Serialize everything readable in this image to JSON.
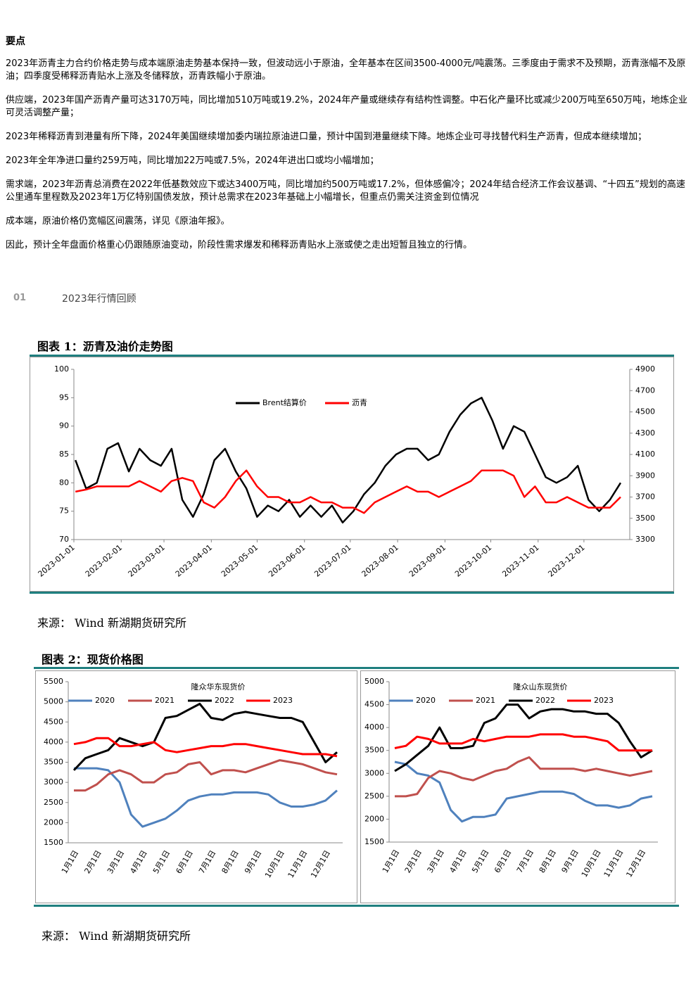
{
  "heading": "要点",
  "paragraphs": [
    "2023年沥青主力合约价格走势与成本端原油走势基本保持一致，但波动远小于原油，全年基本在区间3500-4000元/吨震荡。三季度由于需求不及预期，沥青涨幅不及原油；四季度受稀释沥青贴水上涨及冬储释放，沥青跌幅小于原油。",
    "供应端，2023年国产沥青产量可达3170万吨，同比增加510万吨或19.2%，2024年产量或继续存有结构性调整。中石化产量环比或减少200万吨至650万吨，地炼企业可灵活调整产量；",
    "2023年稀释沥青到港量有所下降，2024年美国继续增加委内瑞拉原油进口量，预计中国到港量继续下降。地炼企业可寻找替代料生产沥青，但成本继续增加；",
    "2023年全年净进口量约259万吨，同比增加22万吨或7.5%，2024年进出口或均小幅增加；",
    "需求端，2023年沥青总消费在2022年低基数效应下或达3400万吨，同比增加约500万吨或17.2%，但体感偏冷；2024年结合经济工作会议基调、“十四五”规划的高速公里通车里程数及2023年1万亿特别国债发放，预计总需求在2023年基础上小幅增长，但重点仍需关注资金到位情况",
    "成本端，原油价格仍宽幅区间震荡，详见《原油年报》。",
    "因此，预计全年盘面价格重心仍跟随原油变动，阶段性需求爆发和稀释沥青贴水上涨或使之走出短暂且独立的行情。"
  ],
  "section": {
    "number": "01",
    "title": "2023年行情回顾"
  },
  "figures": [
    {
      "caption": "图表 1：沥青及油价走势图",
      "source": "来源： Wind  新湖期货研究所"
    },
    {
      "caption": "图表 2：现货价格图",
      "source": "来源： Wind  新湖期货研究所"
    }
  ],
  "chart_data": [
    {
      "type": "line",
      "x": [
        "2023-01-02",
        "2023-01-09",
        "2023-01-16",
        "2023-01-23",
        "2023-01-30",
        "2023-02-06",
        "2023-02-13",
        "2023-02-20",
        "2023-02-27",
        "2023-03-06",
        "2023-03-13",
        "2023-03-20",
        "2023-03-27",
        "2023-04-03",
        "2023-04-10",
        "2023-04-17",
        "2023-04-24",
        "2023-05-01",
        "2023-05-08",
        "2023-05-15",
        "2023-05-22",
        "2023-05-29",
        "2023-06-05",
        "2023-06-12",
        "2023-06-19",
        "2023-06-26",
        "2023-07-03",
        "2023-07-10",
        "2023-07-17",
        "2023-07-24",
        "2023-07-31",
        "2023-08-07",
        "2023-08-14",
        "2023-08-21",
        "2023-08-28",
        "2023-09-04",
        "2023-09-11",
        "2023-09-18",
        "2023-09-25",
        "2023-10-02",
        "2023-10-09",
        "2023-10-16",
        "2023-10-23",
        "2023-10-30",
        "2023-11-06",
        "2023-11-13",
        "2023-11-20",
        "2023-11-27",
        "2023-12-04",
        "2023-12-11",
        "2023-12-18",
        "2023-12-25"
      ],
      "xlim": [
        "2023-01-01",
        "2023-12-31"
      ],
      "xticks": [
        "2023-01-01",
        "2023-02-01",
        "2023-03-01",
        "2023-04-01",
        "2023-05-01",
        "2023-06-01",
        "2023-07-01",
        "2023-08-01",
        "2023-09-01",
        "2023-10-01",
        "2023-11-01",
        "2023-12-01"
      ],
      "ylim": [
        70,
        100
      ],
      "yticks": [
        70,
        75,
        80,
        85,
        90,
        95,
        100
      ],
      "y2lim": [
        3300,
        4900
      ],
      "y2ticks": [
        3300,
        3500,
        3700,
        3900,
        4100,
        4300,
        4500,
        4700,
        4900
      ],
      "series": [
        {
          "name": "Brent结算价",
          "color": "#000000",
          "values": [
            84,
            79,
            80,
            86,
            87,
            82,
            86,
            84,
            83,
            86,
            77,
            74,
            78,
            84,
            86,
            82,
            79,
            74,
            76,
            75,
            77,
            74,
            76,
            74,
            76,
            73,
            75,
            78,
            80,
            83,
            85,
            86,
            86,
            84,
            85,
            89,
            92,
            94,
            95,
            91,
            86,
            90,
            89,
            85,
            81,
            80,
            81,
            83,
            77,
            75,
            77,
            80
          ]
        },
        {
          "name": "沥青",
          "color": "#ff0000",
          "axis": "y2",
          "values": [
            3750,
            3770,
            3800,
            3800,
            3800,
            3800,
            3850,
            3800,
            3750,
            3850,
            3880,
            3850,
            3650,
            3600,
            3700,
            3850,
            3950,
            3800,
            3700,
            3700,
            3650,
            3650,
            3700,
            3650,
            3650,
            3600,
            3600,
            3550,
            3650,
            3700,
            3750,
            3800,
            3750,
            3750,
            3700,
            3750,
            3800,
            3850,
            3950,
            3950,
            3950,
            3900,
            3700,
            3800,
            3650,
            3650,
            3700,
            3650,
            3600,
            3600,
            3600,
            3700
          ]
        }
      ]
    },
    {
      "type": "line",
      "title": "隆众华东现货价",
      "categories": [
        "1月1日",
        null,
        "2月1日",
        null,
        "3月1日",
        null,
        "4月1日",
        null,
        "5月1日",
        null,
        "6月1日",
        null,
        "7月1日",
        null,
        "8月1日",
        null,
        "9月1日",
        null,
        "10月1日",
        null,
        "11月1日",
        null,
        "12月1日",
        null
      ],
      "ylim": [
        1500,
        5500
      ],
      "yticks": [
        1500,
        2000,
        2500,
        3000,
        3500,
        4000,
        4500,
        5000,
        5500
      ],
      "series": [
        {
          "name": "2020",
          "color": "#4f81bd",
          "values": [
            3350,
            3350,
            3350,
            3300,
            3000,
            2200,
            1900,
            2000,
            2100,
            2300,
            2550,
            2650,
            2700,
            2700,
            2750,
            2750,
            2750,
            2700,
            2500,
            2400,
            2400,
            2450,
            2550,
            2800
          ]
        },
        {
          "name": "2021",
          "color": "#c0504d",
          "values": [
            2800,
            2800,
            2950,
            3200,
            3300,
            3200,
            3000,
            3000,
            3200,
            3250,
            3450,
            3500,
            3200,
            3300,
            3300,
            3250,
            3350,
            3450,
            3550,
            3500,
            3450,
            3350,
            3250,
            3200
          ]
        },
        {
          "name": "2022",
          "color": "#000000",
          "values": [
            3300,
            3600,
            3700,
            3800,
            4100,
            4000,
            3900,
            4000,
            4600,
            4650,
            4800,
            4950,
            4600,
            4550,
            4700,
            4750,
            4700,
            4650,
            4600,
            4600,
            4500,
            4000,
            3500,
            3750
          ]
        },
        {
          "name": "2023",
          "color": "#ff0000",
          "values": [
            3950,
            4000,
            4100,
            4100,
            3900,
            3900,
            3950,
            4000,
            3800,
            3750,
            3800,
            3850,
            3900,
            3900,
            3950,
            3950,
            3900,
            3850,
            3800,
            3750,
            3700,
            3700,
            3700,
            3650
          ]
        }
      ]
    },
    {
      "type": "line",
      "title": "隆众山东现货价",
      "categories": [
        "1月1日",
        null,
        "2月1日",
        null,
        "3月1日",
        null,
        "4月1日",
        null,
        "5月1日",
        null,
        "6月1日",
        null,
        "7月1日",
        null,
        "8月1日",
        null,
        "9月1日",
        null,
        "10月1日",
        null,
        "11月1日",
        null,
        "12月1日",
        null
      ],
      "ylim": [
        1500,
        5000
      ],
      "yticks": [
        1500,
        2000,
        2500,
        3000,
        3500,
        4000,
        4500,
        5000
      ],
      "series": [
        {
          "name": "2020",
          "color": "#4f81bd",
          "values": [
            3250,
            3200,
            3000,
            2950,
            2800,
            2200,
            1950,
            2050,
            2050,
            2100,
            2450,
            2500,
            2550,
            2600,
            2600,
            2600,
            2550,
            2400,
            2300,
            2300,
            2250,
            2300,
            2450,
            2500
          ]
        },
        {
          "name": "2021",
          "color": "#c0504d",
          "values": [
            2500,
            2500,
            2550,
            2900,
            3050,
            3000,
            2900,
            2850,
            2950,
            3050,
            3100,
            3250,
            3350,
            3100,
            3100,
            3100,
            3100,
            3050,
            3100,
            3050,
            3000,
            2950,
            3000,
            3050
          ]
        },
        {
          "name": "2022",
          "color": "#000000",
          "values": [
            3050,
            3200,
            3400,
            3600,
            4000,
            3550,
            3550,
            3600,
            4100,
            4200,
            4500,
            4500,
            4200,
            4350,
            4400,
            4400,
            4350,
            4350,
            4300,
            4300,
            4100,
            3700,
            3350,
            3500
          ]
        },
        {
          "name": "2023",
          "color": "#ff0000",
          "values": [
            3550,
            3600,
            3800,
            3750,
            3650,
            3650,
            3650,
            3750,
            3700,
            3750,
            3800,
            3800,
            3800,
            3850,
            3850,
            3850,
            3800,
            3800,
            3750,
            3700,
            3500,
            3500,
            3500,
            3500
          ]
        }
      ]
    }
  ]
}
